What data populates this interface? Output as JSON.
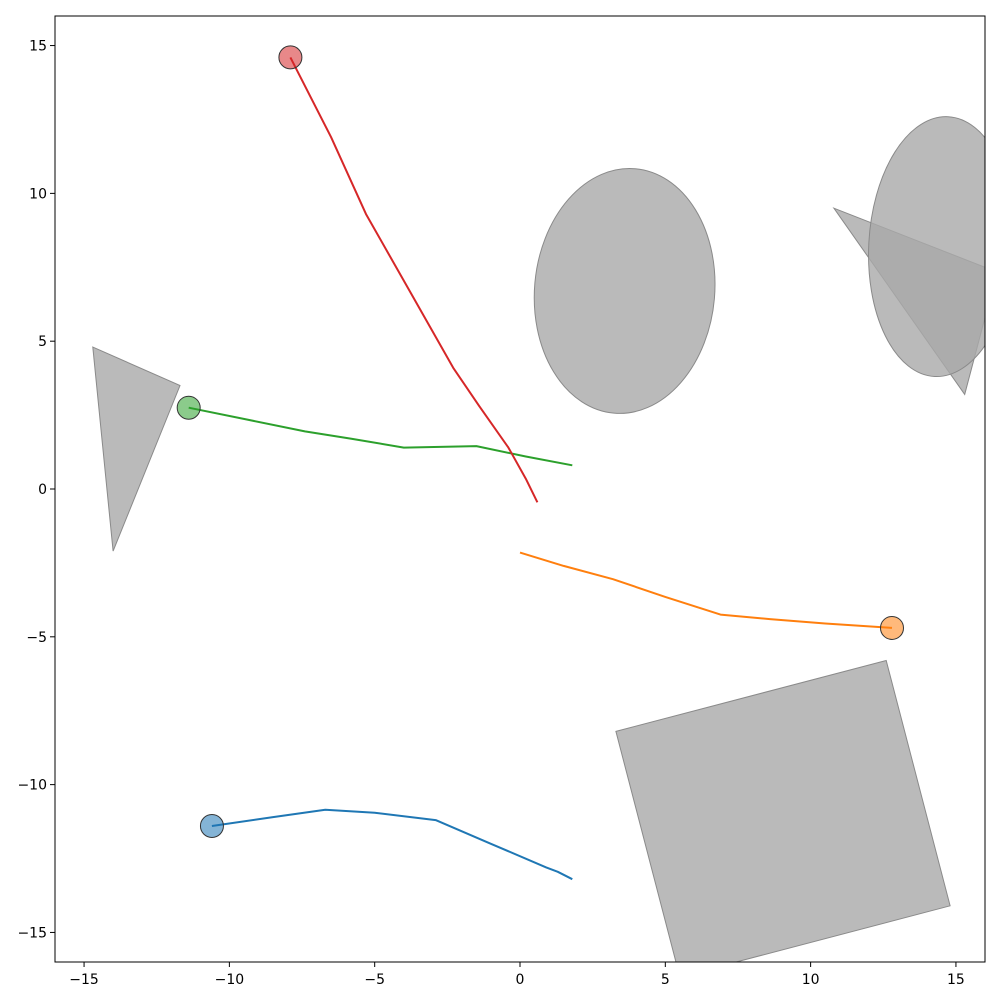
{
  "chart_data": {
    "type": "line",
    "title": "",
    "xlabel": "",
    "ylabel": "",
    "xlim": [
      -16,
      16
    ],
    "ylim": [
      -16,
      16
    ],
    "grid": false,
    "legend": "none",
    "x_ticks": [
      -15,
      -10,
      -5,
      0,
      5,
      10,
      15
    ],
    "y_ticks": [
      -15,
      -10,
      -5,
      0,
      5,
      10,
      15
    ],
    "x_tick_labels": [
      "−15",
      "−10",
      "−5",
      "0",
      "5",
      "10",
      "15"
    ],
    "y_tick_labels": [
      "−15",
      "−10",
      "−5",
      "0",
      "5",
      "10",
      "15"
    ],
    "obstacle_color": "#a9a9a9",
    "obstacles": [
      {
        "kind": "polygon",
        "points": [
          [
            -14.7,
            4.8
          ],
          [
            -11.7,
            3.5
          ],
          [
            -14.0,
            -2.1
          ]
        ]
      },
      {
        "kind": "polygon",
        "points": [
          [
            3.3,
            -8.2
          ],
          [
            12.6,
            -5.8
          ],
          [
            14.8,
            -14.1
          ],
          [
            5.5,
            -16.5
          ]
        ]
      },
      {
        "kind": "polygon",
        "points": [
          [
            10.8,
            9.5
          ],
          [
            16.0,
            7.5
          ],
          [
            16.0,
            5.8
          ],
          [
            15.3,
            3.2
          ]
        ]
      },
      {
        "kind": "ellipse",
        "cx": 3.6,
        "cy": 6.7,
        "rx": 3.1,
        "ry": 4.15,
        "rotation_deg": -5
      },
      {
        "kind": "ellipse",
        "cx": 14.5,
        "cy": 8.2,
        "rx": 2.5,
        "ry": 4.4,
        "rotation_deg": -3
      }
    ],
    "series": [
      {
        "color": "#1f77b4",
        "points": [
          [
            -10.6,
            -11.4
          ],
          [
            -8.5,
            -11.1
          ],
          [
            -6.7,
            -10.85
          ],
          [
            -5.0,
            -10.95
          ],
          [
            -2.9,
            -11.2
          ],
          [
            -1.0,
            -12.0
          ],
          [
            0.9,
            -12.8
          ],
          [
            1.3,
            -12.95
          ],
          [
            1.8,
            -13.2
          ]
        ]
      },
      {
        "color": "#ff7f0e",
        "points": [
          [
            12.8,
            -4.7
          ],
          [
            10.5,
            -4.55
          ],
          [
            8.6,
            -4.4
          ],
          [
            6.9,
            -4.25
          ],
          [
            5.0,
            -3.65
          ],
          [
            3.2,
            -3.05
          ],
          [
            1.5,
            -2.6
          ],
          [
            0.0,
            -2.15
          ]
        ]
      },
      {
        "color": "#2ca02c",
        "points": [
          [
            -11.4,
            2.75
          ],
          [
            -9.4,
            2.35
          ],
          [
            -7.4,
            1.95
          ],
          [
            -5.8,
            1.7
          ],
          [
            -4.0,
            1.4
          ],
          [
            -1.5,
            1.45
          ],
          [
            0.2,
            1.1
          ],
          [
            1.8,
            0.8
          ]
        ]
      },
      {
        "color": "#d62728",
        "points": [
          [
            -7.9,
            14.6
          ],
          [
            -6.5,
            11.9
          ],
          [
            -5.3,
            9.3
          ],
          [
            -3.8,
            6.7
          ],
          [
            -2.3,
            4.1
          ],
          [
            -1.4,
            2.8
          ],
          [
            -0.4,
            1.4
          ],
          [
            0.2,
            0.35
          ],
          [
            0.6,
            -0.45
          ]
        ]
      }
    ],
    "start_markers": [
      {
        "x": -10.6,
        "y": -11.4,
        "color": "#1f77b4"
      },
      {
        "x": 12.8,
        "y": -4.7,
        "color": "#ff7f0e"
      },
      {
        "x": -11.4,
        "y": 2.75,
        "color": "#2ca02c"
      },
      {
        "x": -7.9,
        "y": 14.6,
        "color": "#d62728"
      }
    ]
  }
}
